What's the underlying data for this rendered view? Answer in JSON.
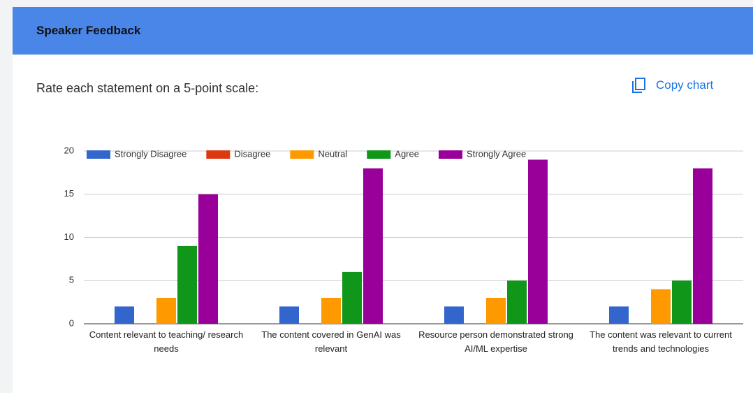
{
  "header": {
    "title": "Speaker Feedback"
  },
  "question": "Rate each statement on a 5-point scale:",
  "copy_button": "Copy chart",
  "chart_data": {
    "type": "bar",
    "categories": [
      "Content relevant to teaching/ research needs",
      "The content covered in GenAI was relevant",
      "Resource person demonstrated strong AI/ML expertise",
      "The content was relevant to current trends and technologies"
    ],
    "series": [
      {
        "name": "Strongly Disagree",
        "color": "#3366cc",
        "values": [
          2,
          2,
          2,
          2
        ]
      },
      {
        "name": "Disagree",
        "color": "#dc3912",
        "values": [
          0,
          0,
          0,
          0
        ]
      },
      {
        "name": "Neutral",
        "color": "#ff9900",
        "values": [
          3,
          3,
          3,
          4
        ]
      },
      {
        "name": "Agree",
        "color": "#109618",
        "values": [
          9,
          6,
          5,
          5
        ]
      },
      {
        "name": "Strongly Agree",
        "color": "#990099",
        "values": [
          15,
          18,
          19,
          18
        ]
      }
    ],
    "ylim": [
      0,
      20
    ],
    "yticks": [
      0,
      5,
      10,
      15,
      20
    ],
    "grid": true,
    "legend": "top"
  }
}
